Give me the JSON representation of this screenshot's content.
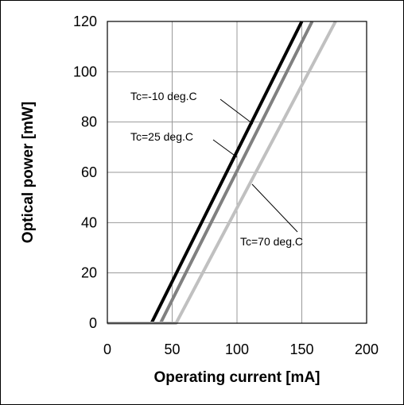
{
  "chart_data": {
    "type": "line",
    "xlabel": "Operating current [mA]",
    "ylabel": "Optical power [mW]",
    "xlim": [
      0,
      200
    ],
    "ylim": [
      0,
      120
    ],
    "xticks": [
      "0",
      "50",
      "100",
      "150",
      "200"
    ],
    "yticks": [
      "0",
      "20",
      "40",
      "60",
      "80",
      "100",
      "120"
    ],
    "grid": true,
    "series": [
      {
        "name": "Tc=-10 deg.C",
        "color": "#000000",
        "x": [
          0,
          32,
          34,
          150
        ],
        "y": [
          0,
          0,
          0,
          120
        ]
      },
      {
        "name": "Tc=25 deg.C",
        "color": "#808080",
        "x": [
          0,
          39,
          41,
          158
        ],
        "y": [
          0,
          0,
          0,
          120
        ]
      },
      {
        "name": "Tc=70 deg.C",
        "color": "#c0c0c0",
        "x": [
          0,
          51,
          53,
          176
        ],
        "y": [
          0,
          0,
          0,
          120
        ]
      }
    ],
    "annotations": [
      {
        "text": "Tc=-10 deg.C",
        "series": 0
      },
      {
        "text": "Tc=25 deg.C",
        "series": 1
      },
      {
        "text": "Tc=70 deg.C",
        "series": 2
      }
    ]
  }
}
